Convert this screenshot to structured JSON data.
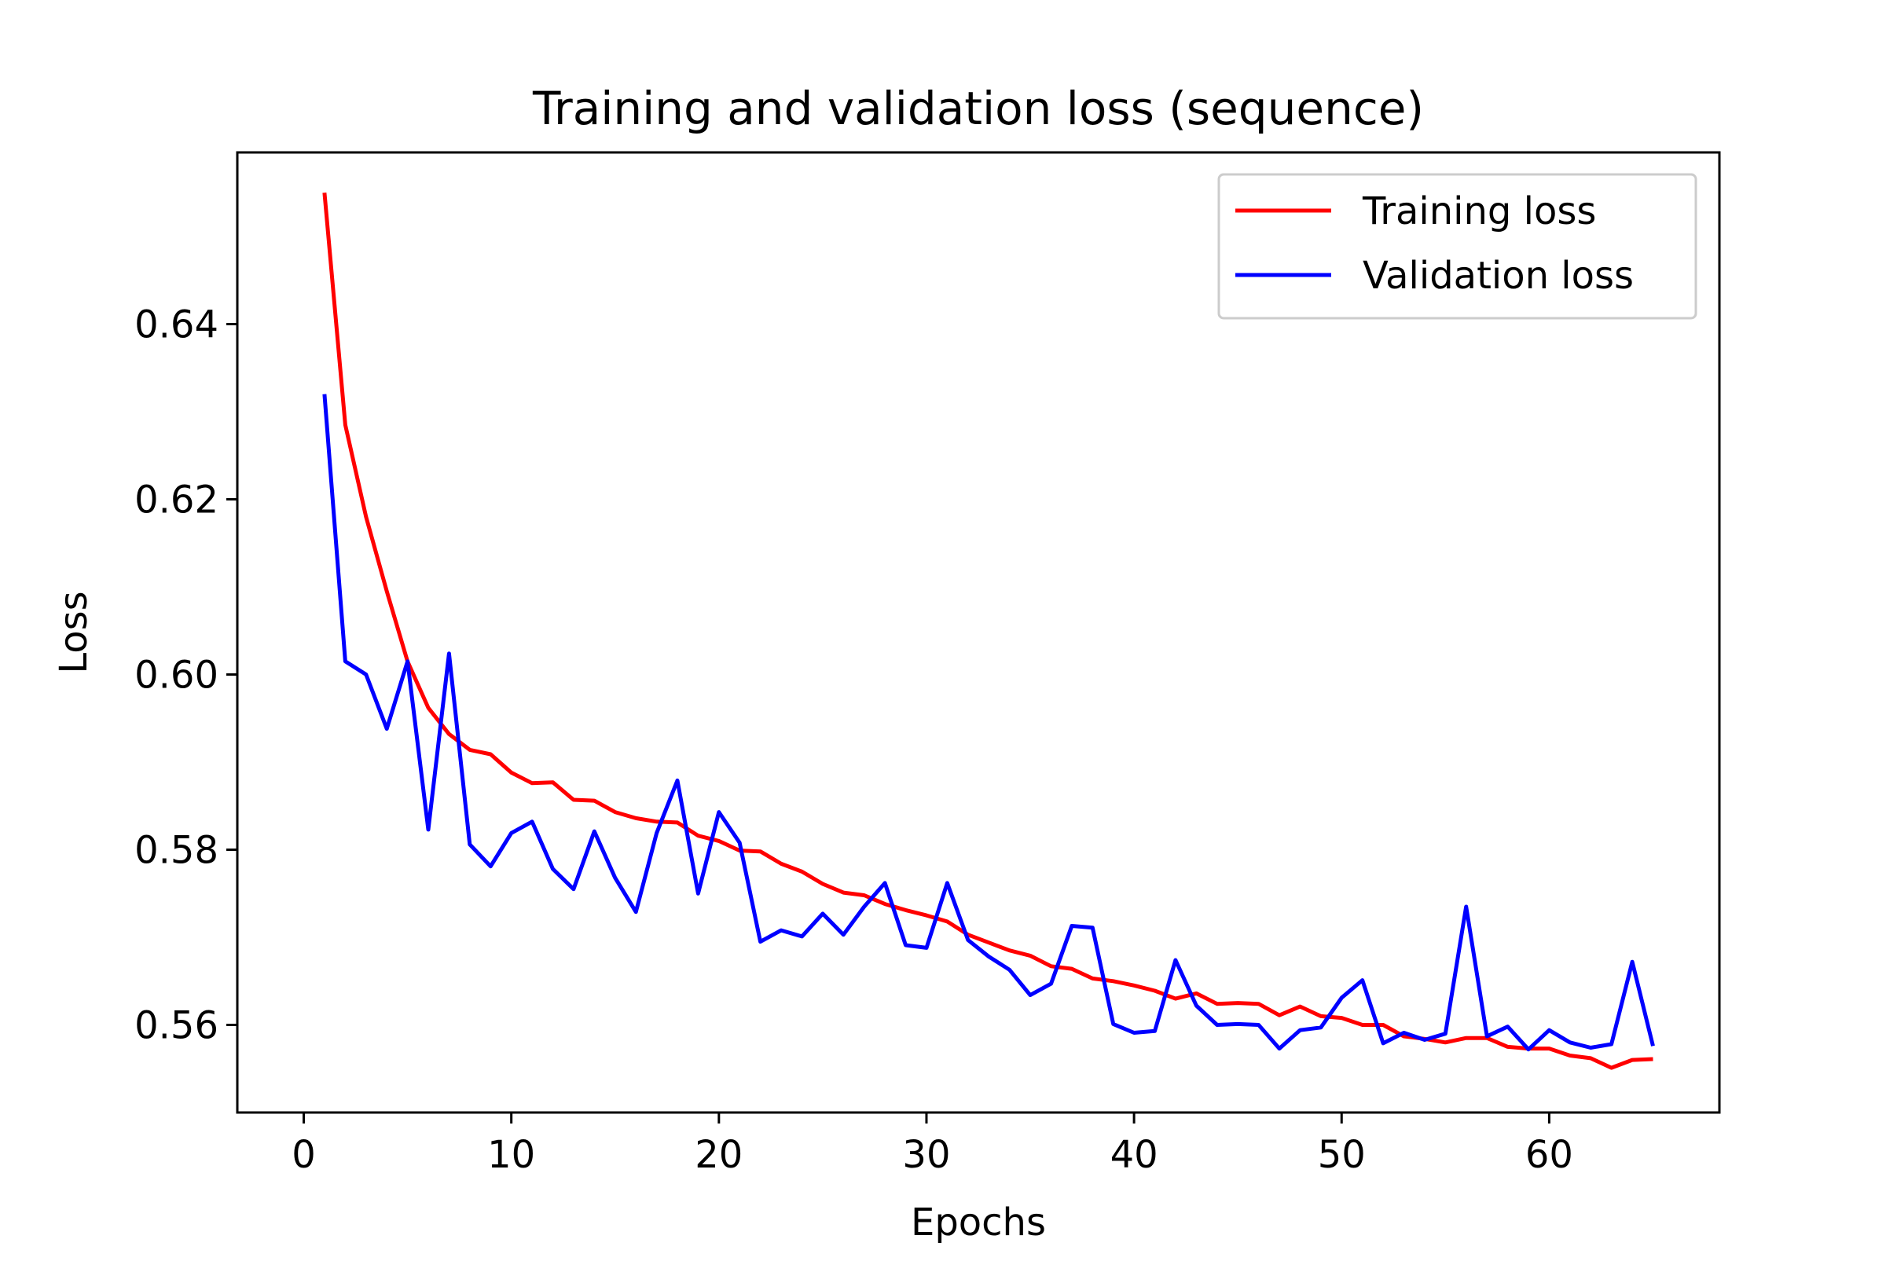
{
  "chart_data": {
    "type": "line",
    "title": "Training and validation loss (sequence)",
    "xlabel": "Epochs",
    "ylabel": "Loss",
    "xlim": [
      -3.2,
      68.2
    ],
    "ylim": [
      0.55,
      0.6596
    ],
    "xticks": [
      0,
      10,
      20,
      30,
      40,
      50,
      60
    ],
    "yticks": [
      0.56,
      0.58,
      0.6,
      0.62,
      0.64
    ],
    "ytick_labels": [
      "0.56",
      "0.58",
      "0.60",
      "0.62",
      "0.64"
    ],
    "grid": false,
    "legend_position": "upper right",
    "x": [
      1,
      2,
      3,
      4,
      5,
      6,
      7,
      8,
      9,
      10,
      11,
      12,
      13,
      14,
      15,
      16,
      17,
      18,
      19,
      20,
      21,
      22,
      23,
      24,
      25,
      26,
      27,
      28,
      29,
      30,
      31,
      32,
      33,
      34,
      35,
      36,
      37,
      38,
      39,
      40,
      41,
      42,
      43,
      44,
      45,
      46,
      47,
      48,
      49,
      50,
      51,
      52,
      53,
      54,
      55,
      56,
      57,
      58,
      59,
      60,
      61,
      62,
      63,
      64,
      65
    ],
    "series": [
      {
        "name": "Training loss",
        "color": "#ff0000",
        "values": [
          0.655,
          0.6285,
          0.618,
          0.6095,
          0.6015,
          0.5962,
          0.5932,
          0.5914,
          0.5909,
          0.5888,
          0.5876,
          0.5877,
          0.5857,
          0.5856,
          0.5843,
          0.5836,
          0.5832,
          0.5831,
          0.5816,
          0.581,
          0.5799,
          0.5798,
          0.5784,
          0.5775,
          0.5761,
          0.5751,
          0.5748,
          0.5738,
          0.5731,
          0.5725,
          0.5718,
          0.5703,
          0.5694,
          0.5685,
          0.5679,
          0.5667,
          0.5664,
          0.5653,
          0.565,
          0.5645,
          0.5639,
          0.563,
          0.5636,
          0.5624,
          0.5625,
          0.5624,
          0.5611,
          0.5621,
          0.561,
          0.5608,
          0.56,
          0.56,
          0.5587,
          0.5584,
          0.558,
          0.5585,
          0.5585,
          0.5575,
          0.5573,
          0.5573,
          0.5565,
          0.5562,
          0.5551,
          0.556,
          0.5561
        ]
      },
      {
        "name": "Validation loss",
        "color": "#0000ff",
        "values": [
          0.632,
          0.6015,
          0.6,
          0.5938,
          0.6015,
          0.5823,
          0.6024,
          0.5806,
          0.5781,
          0.5819,
          0.5832,
          0.5778,
          0.5755,
          0.5821,
          0.5768,
          0.5729,
          0.5819,
          0.5879,
          0.575,
          0.5843,
          0.5808,
          0.5695,
          0.5708,
          0.5701,
          0.5727,
          0.5703,
          0.5735,
          0.5762,
          0.5691,
          0.5688,
          0.5762,
          0.5697,
          0.5678,
          0.5663,
          0.5634,
          0.5647,
          0.5713,
          0.5711,
          0.5601,
          0.5591,
          0.5593,
          0.5674,
          0.5622,
          0.56,
          0.5601,
          0.56,
          0.5573,
          0.5594,
          0.5597,
          0.5631,
          0.5651,
          0.5579,
          0.5591,
          0.5583,
          0.559,
          0.5735,
          0.5587,
          0.5598,
          0.5572,
          0.5594,
          0.558,
          0.5574,
          0.5578,
          0.5672,
          0.5576
        ]
      }
    ]
  }
}
